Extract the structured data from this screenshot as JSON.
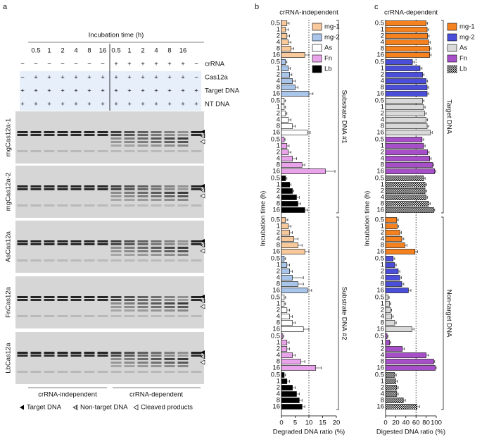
{
  "panel_labels": [
    "a",
    "b",
    "c"
  ],
  "gel": {
    "header": "Incubation time (h)",
    "times": [
      "0.5",
      "1",
      "2",
      "4",
      "8",
      "16",
      "0.5",
      "1",
      "2",
      "4",
      "8",
      "16"
    ],
    "rows": [
      {
        "label": "crRNA",
        "signs": [
          "−",
          "−",
          "−",
          "−",
          "−",
          "−",
          "−",
          "+",
          "+",
          "+",
          "+",
          "+",
          "+",
          "−"
        ]
      },
      {
        "label": "Cas12a",
        "signs": [
          "−",
          "+",
          "+",
          "+",
          "+",
          "+",
          "+",
          "+",
          "+",
          "+",
          "+",
          "+",
          "+",
          "−"
        ]
      },
      {
        "label": "Target DNA",
        "signs": [
          "+",
          "+",
          "+",
          "+",
          "+",
          "+",
          "+",
          "+",
          "+",
          "+",
          "+",
          "+",
          "+",
          "+"
        ]
      },
      {
        "label": "NT DNA",
        "signs": [
          "+",
          "+",
          "+",
          "+",
          "+",
          "+",
          "+",
          "+",
          "+",
          "+",
          "+",
          "+",
          "+",
          "+"
        ]
      }
    ],
    "gels": [
      "mgCas12a-1",
      "mgCas12a-2",
      "AsCas12a",
      "FnCas12a",
      "LbCas12a"
    ],
    "groups": [
      "crRNA-independent",
      "crRNA-dependent"
    ],
    "legend": [
      "Target DNA",
      "Non-target DNA",
      "Cleaved products"
    ]
  },
  "chart_data": [
    {
      "type": "bar",
      "orientation": "horizontal",
      "title": "crRNA-independent",
      "xlabel": "Degraded DNA ratio (%)",
      "ylabel": "Incubation time (h)",
      "categories": [
        "0.5",
        "1",
        "2",
        "4",
        "8",
        "16"
      ],
      "xlim": [
        0,
        20
      ],
      "xticks": [
        0,
        5,
        10,
        15,
        20
      ],
      "refline": 10,
      "legend": "upper right",
      "groups": [
        {
          "name": "Substrate DNA #1",
          "series": [
            {
              "name": "mg-1",
              "color": "#f8c99b",
              "values": [
                2,
                1.5,
                2,
                2.5,
                3.5,
                8.5
              ],
              "errors": [
                0.8,
                1,
                1,
                1,
                1,
                1.5
              ]
            },
            {
              "name": "mg-2",
              "color": "#a9c5ea",
              "values": [
                1.5,
                2.5,
                3,
                4,
                5,
                10
              ],
              "errors": [
                0.5,
                0.7,
                0.8,
                1,
                1,
                1.5
              ]
            },
            {
              "name": "As",
              "color": "#ffffff",
              "values": [
                1,
                1,
                1.5,
                2.5,
                4,
                9.5
              ],
              "errors": [
                0.5,
                0.5,
                0.5,
                1,
                1,
                1
              ]
            },
            {
              "name": "Fn",
              "color": "#e9a3ea",
              "values": [
                1,
                2,
                2.5,
                4,
                7.5,
                16
              ],
              "errors": [
                0.3,
                0.8,
                1,
                1.5,
                1,
                3.5
              ]
            },
            {
              "name": "Lb",
              "color": "#000000",
              "values": [
                1.5,
                3,
                4,
                5.5,
                6,
                8.5
              ],
              "errors": [
                0.5,
                0.5,
                0.5,
                1,
                1,
                1
              ]
            }
          ]
        },
        {
          "name": "Substrate DNA #2",
          "series": [
            {
              "name": "mg-1",
              "color": "#f8c99b",
              "values": [
                1.5,
                2.5,
                3,
                4.5,
                6,
                8.5
              ],
              "errors": [
                0.8,
                1,
                1,
                1.5,
                1.5,
                1.5
              ]
            },
            {
              "name": "mg-2",
              "color": "#a9c5ea",
              "values": [
                1,
                2,
                3,
                4,
                6,
                9.5
              ],
              "errors": [
                0.5,
                1,
                1,
                4,
                2,
                1.5
              ]
            },
            {
              "name": "As",
              "color": "#ffffff",
              "values": [
                1,
                1,
                2,
                3,
                4,
                8
              ],
              "errors": [
                0.5,
                0.5,
                1,
                1,
                1,
                2
              ]
            },
            {
              "name": "Fn",
              "color": "#e9a3ea",
              "values": [
                0.5,
                2,
                2,
                4,
                7,
                12.5
              ],
              "errors": [
                0.3,
                0.8,
                1,
                1,
                1.5,
                2
              ]
            },
            {
              "name": "Lb",
              "color": "#000000",
              "values": [
                1,
                2,
                4,
                5.5,
                6.5,
                7.5
              ],
              "errors": [
                0.5,
                1,
                1,
                1,
                1,
                1
              ]
            }
          ]
        }
      ]
    },
    {
      "type": "bar",
      "orientation": "horizontal",
      "title": "crRNA-dependent",
      "xlabel": "Digested DNA ratio (%)",
      "ylabel": "Incubation time (h)",
      "categories": [
        "0.5",
        "1",
        "2",
        "4",
        "8",
        "16"
      ],
      "xlim": [
        0,
        100
      ],
      "xticks": [
        0,
        20,
        40,
        60,
        80,
        100
      ],
      "refline": 60,
      "legend": "upper right",
      "groups": [
        {
          "name": "Target DNA",
          "series": [
            {
              "name": "mg-1",
              "color": "#f5821f",
              "values": [
                80,
                82,
                83,
                85,
                87,
                87
              ],
              "errors": [
                3,
                3,
                3,
                3,
                3,
                3
              ]
            },
            {
              "name": "mg-2",
              "color": "#4a4ed8",
              "values": [
                53,
                68,
                73,
                80,
                82,
                82
              ],
              "errors": [
                4,
                4,
                3,
                3,
                3,
                3
              ]
            },
            {
              "name": "As",
              "color": "#d9d9d9",
              "values": [
                73,
                75,
                77,
                80,
                82,
                88
              ],
              "errors": [
                3,
                3,
                3,
                3,
                3,
                4
              ]
            },
            {
              "name": "Fn",
              "color": "#a64fc9",
              "values": [
                72,
                75,
                83,
                87,
                93,
                97
              ],
              "errors": [
                3,
                3,
                3,
                3,
                2,
                2
              ]
            },
            {
              "name": "Lb",
              "color": "#000000",
              "pattern": "checker",
              "values": [
                75,
                78,
                78,
                80,
                85,
                95
              ],
              "errors": [
                3,
                3,
                3,
                3,
                3,
                2
              ]
            }
          ]
        },
        {
          "name": "Non-target DNA",
          "series": [
            {
              "name": "mg-1",
              "color": "#f5821f",
              "values": [
                22,
                23,
                28,
                32,
                38,
                58
              ],
              "errors": [
                3,
                3,
                3,
                4,
                4,
                5
              ]
            },
            {
              "name": "mg-2",
              "color": "#4a4ed8",
              "values": [
                15,
                18,
                25,
                28,
                32,
                45
              ],
              "errors": [
                3,
                3,
                3,
                3,
                4,
                5
              ]
            },
            {
              "name": "As",
              "color": "#d9d9d9",
              "values": [
                5,
                8,
                10,
                12,
                18,
                52
              ],
              "errors": [
                2,
                2,
                2,
                3,
                3,
                4
              ]
            },
            {
              "name": "Fn",
              "color": "#a64fc9",
              "values": [
                3,
                8,
                33,
                80,
                95,
                98
              ],
              "errors": [
                2,
                2,
                4,
                5,
                2,
                2
              ]
            },
            {
              "name": "Lb",
              "color": "#000000",
              "pattern": "checker",
              "values": [
                18,
                20,
                22,
                22,
                35,
                62
              ],
              "errors": [
                3,
                3,
                3,
                3,
                4,
                5
              ]
            }
          ]
        }
      ]
    }
  ]
}
